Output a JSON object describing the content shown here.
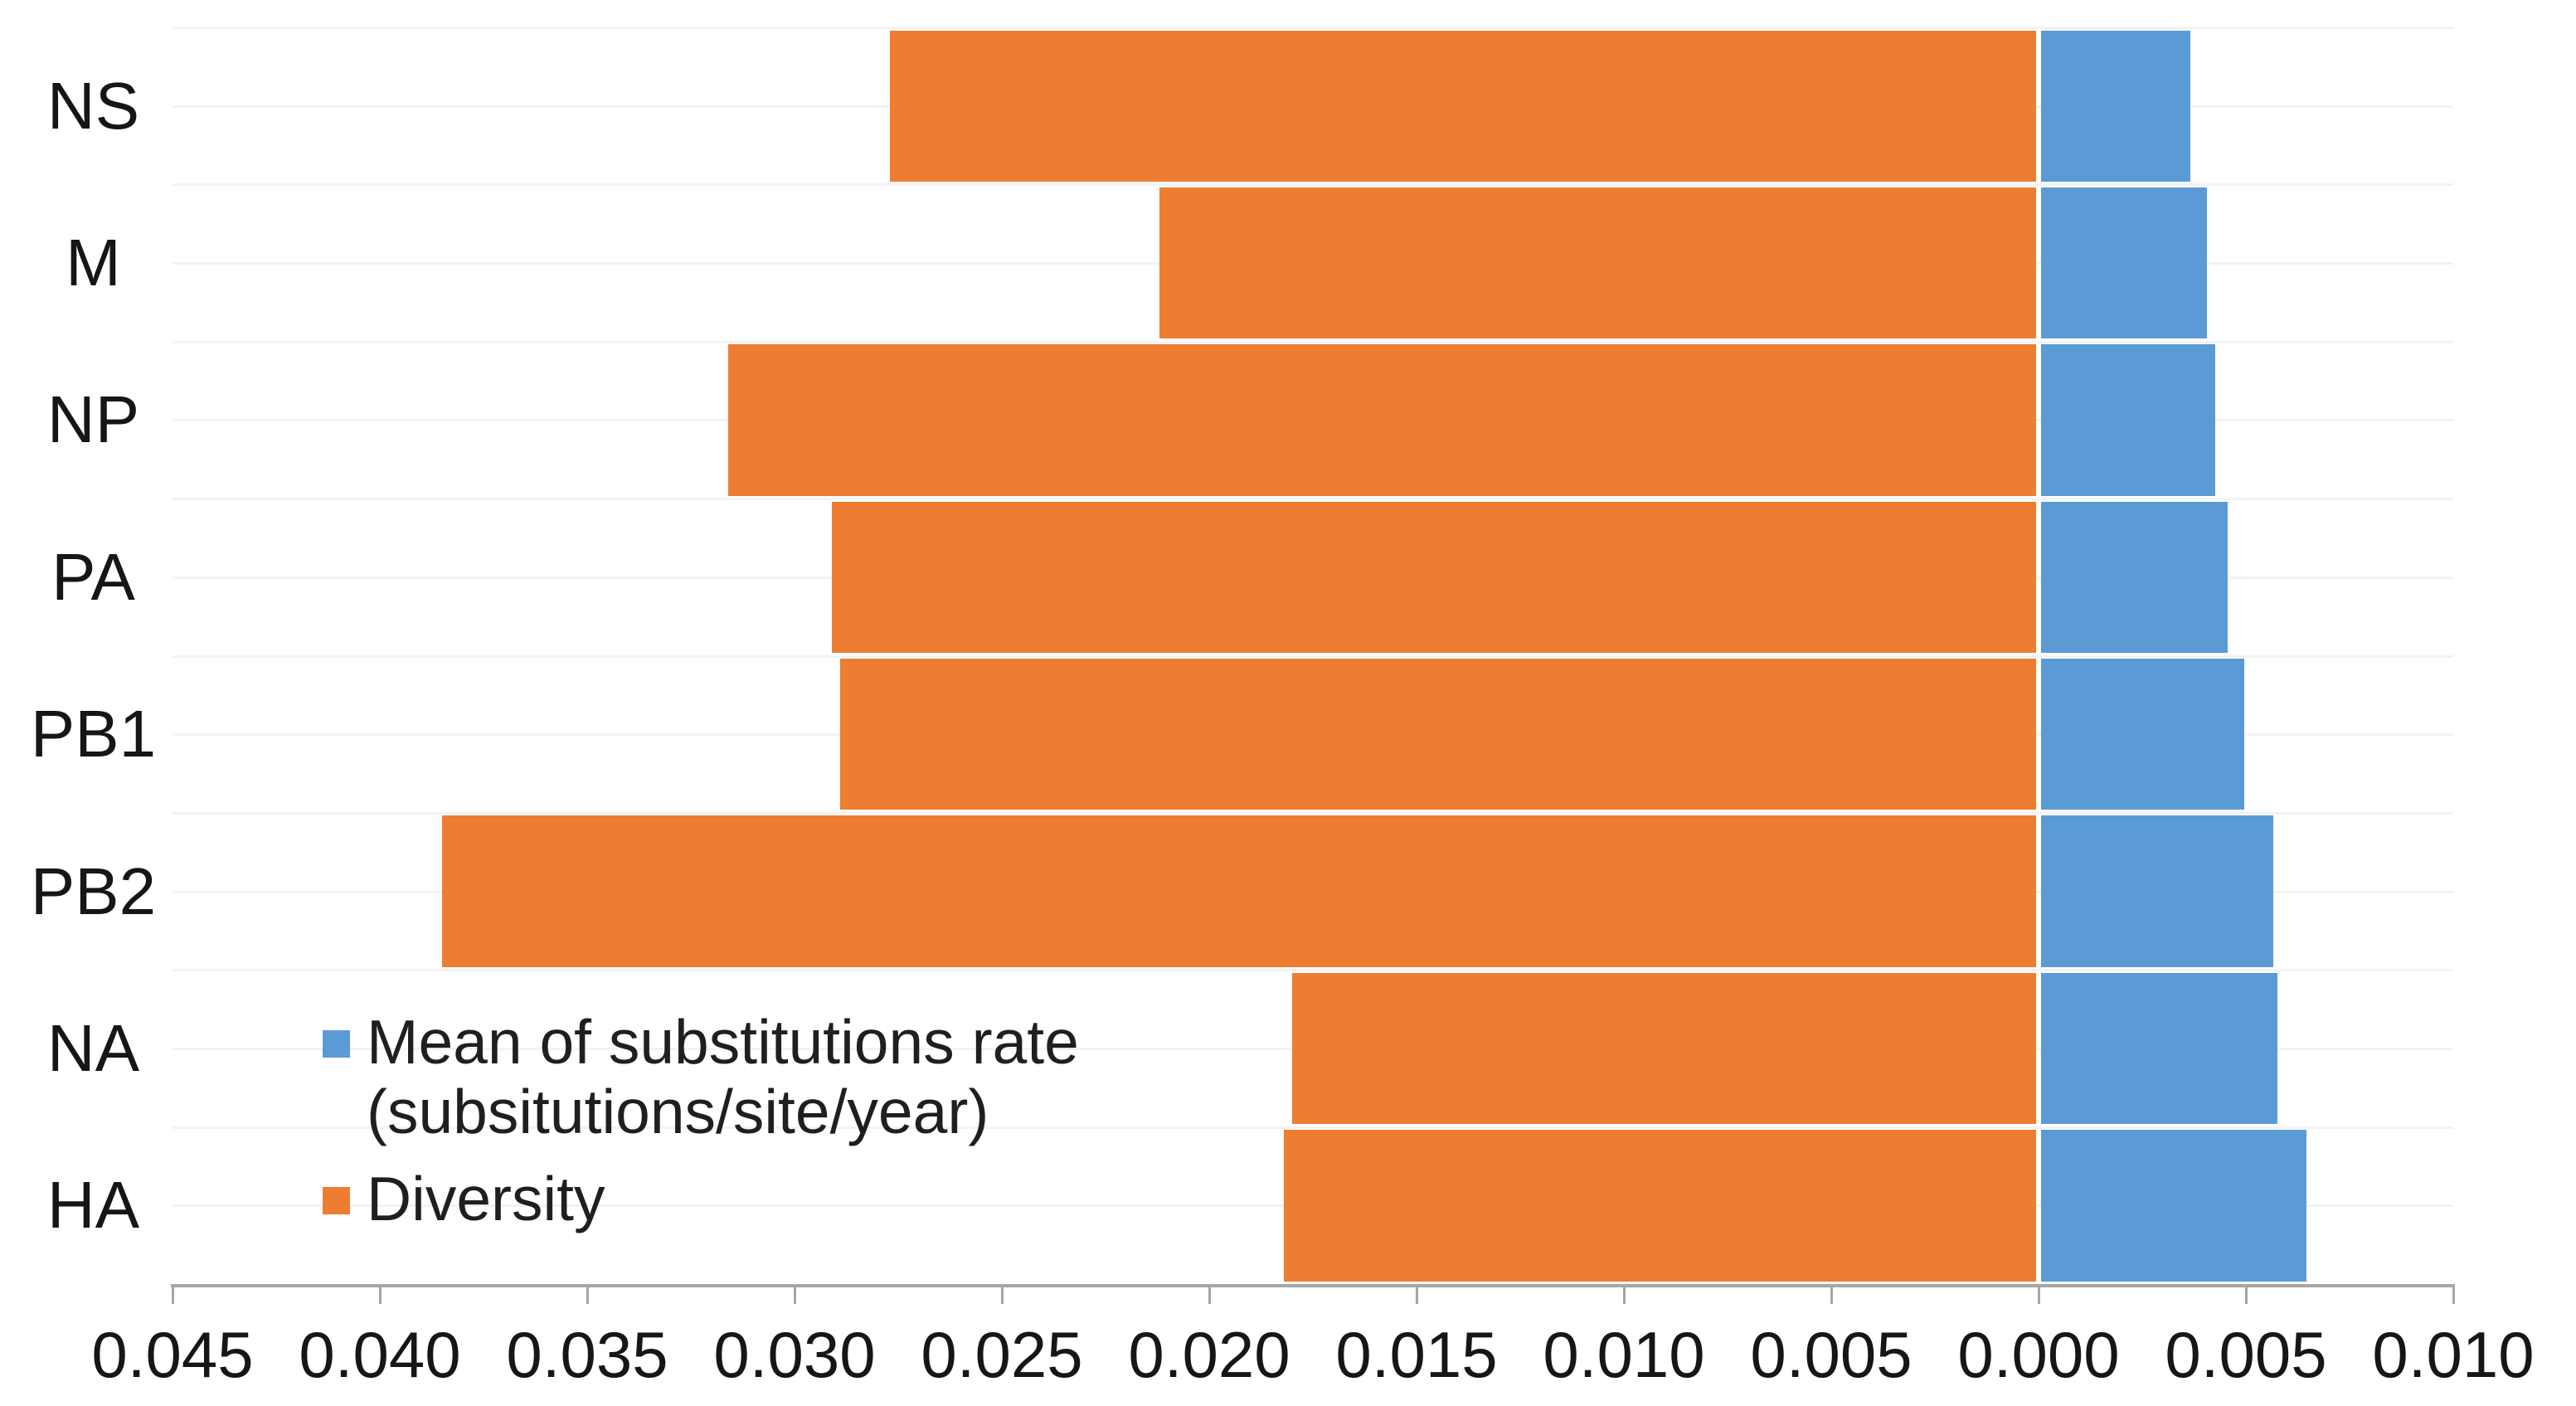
{
  "chart_data": {
    "type": "bar",
    "orientation": "horizontal-diverging",
    "title": "",
    "categories": [
      "NS",
      "M",
      "NP",
      "PA",
      "PB1",
      "PB2",
      "NA",
      "HA"
    ],
    "series": [
      {
        "name": "Mean of substitutions rate (subsitutions/site/year)",
        "color": "#5B9BD5",
        "direction": "right",
        "values": [
          0.0036,
          0.004,
          0.0042,
          0.0045,
          0.0049,
          0.0056,
          0.0057,
          0.0064
        ]
      },
      {
        "name": "Diversity",
        "color": "#ED7D31",
        "direction": "left",
        "values": [
          0.0277,
          0.0212,
          0.0316,
          0.0291,
          0.0289,
          0.0385,
          0.018,
          0.0182
        ]
      }
    ],
    "x_axis": {
      "tick_labels": [
        "0.045",
        "0.040",
        "0.035",
        "0.030",
        "0.025",
        "0.020",
        "0.015",
        "0.010",
        "0.005",
        "0.000",
        "0.005",
        "0.010"
      ],
      "left_max": 0.045,
      "right_max": 0.01,
      "step": 0.005,
      "zero_label": "0.000"
    },
    "grid": "horizontal-faint",
    "legend": {
      "position": "inside-bottom-left",
      "items": [
        {
          "label": "Mean of substitutions rate",
          "label_line2": "(subsitutions/site/year)",
          "color": "#5B9BD5"
        },
        {
          "label": "Diversity",
          "label_line2": "",
          "color": "#ED7D31"
        }
      ]
    }
  },
  "styles": {
    "bar_orange": "#ED7D31",
    "bar_blue": "#5B9BD5",
    "axis_color": "#A6A6A6",
    "grid_color": "#F3F3F3",
    "text_color": "#161616",
    "background": "#FFFFFF"
  }
}
